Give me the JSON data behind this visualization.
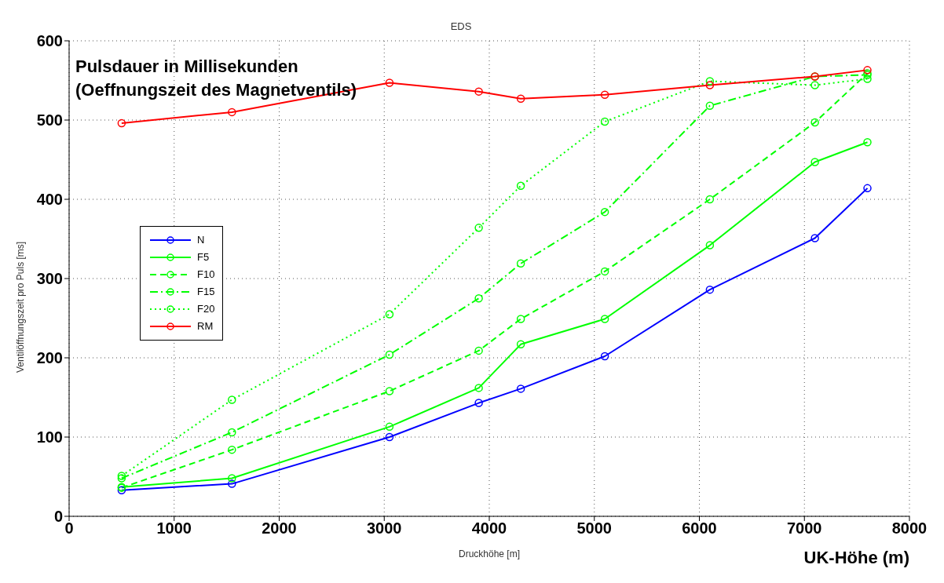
{
  "chart_data": {
    "type": "line",
    "title": "EDS",
    "xlabel": "Druckhöhe [m]",
    "ylabel": "Ventilöffnungszeit pro Puls [ms]",
    "annotations": [
      "Pulsdauer in Millisekunden\n(Oeffnungszeit des Magnetventils)",
      "UK-Höhe (m)"
    ],
    "x": [
      500,
      1550,
      3050,
      3900,
      4300,
      5100,
      6100,
      7100,
      7600
    ],
    "series": [
      {
        "name": "N",
        "color": "#0000ff",
        "line_style": "solid",
        "values": [
          33,
          41,
          100,
          143,
          161,
          202,
          286,
          351,
          414
        ]
      },
      {
        "name": "F5",
        "color": "#00ff00",
        "line_style": "solid",
        "values": [
          37,
          48,
          113,
          162,
          217,
          249,
          342,
          447,
          472
        ]
      },
      {
        "name": "F10",
        "color": "#00ff00",
        "line_style": "dashed",
        "values": [
          36,
          84,
          158,
          209,
          249,
          309,
          400,
          497,
          559
        ]
      },
      {
        "name": "F15",
        "color": "#00ff00",
        "line_style": "dashdot",
        "values": [
          48,
          106,
          204,
          275,
          319,
          384,
          518,
          555,
          557
        ]
      },
      {
        "name": "F20",
        "color": "#00ff00",
        "line_style": "dotted",
        "values": [
          51,
          147,
          255,
          364,
          417,
          498,
          549,
          544,
          552
        ]
      },
      {
        "name": "RM",
        "color": "#ff0000",
        "line_style": "solid",
        "values": [
          496,
          510,
          547,
          536,
          527,
          532,
          544,
          555,
          563
        ]
      }
    ],
    "xlim": [
      0,
      8000
    ],
    "xticks": [
      0,
      1000,
      2000,
      3000,
      4000,
      5000,
      6000,
      7000,
      8000
    ],
    "ylim": [
      0,
      600
    ],
    "yticks": [
      0,
      100,
      200,
      300,
      400,
      500,
      600
    ],
    "grid": true,
    "legend": "left",
    "marker": "circle"
  }
}
